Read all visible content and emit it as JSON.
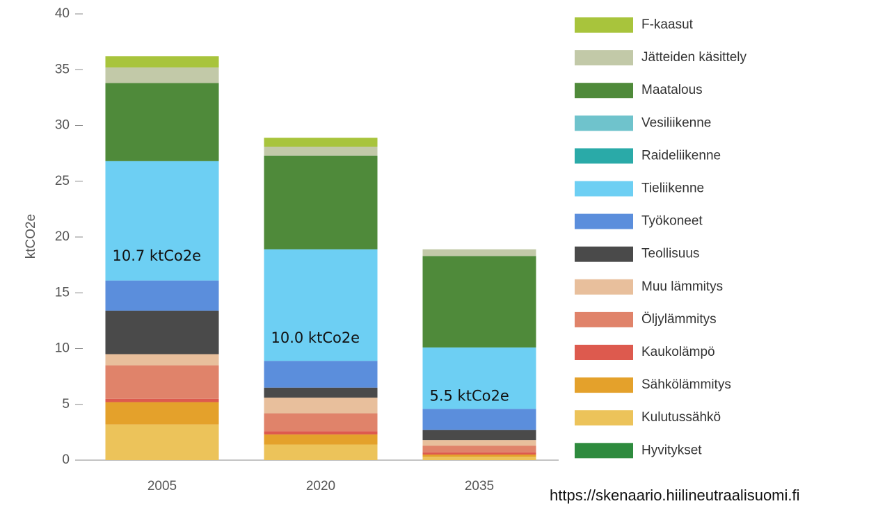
{
  "chart_data": {
    "type": "stacked_bar",
    "ylabel": "ktCO2e",
    "categories": [
      "2005",
      "2020",
      "2035"
    ],
    "ylim": [
      0,
      40
    ],
    "yticks": [
      0,
      5,
      10,
      15,
      20,
      25,
      30,
      35,
      40
    ],
    "grid": false,
    "legend": "right",
    "series": [
      {
        "name": "F-kaasut",
        "color": "#a8c43c",
        "values": [
          1.0,
          0.8,
          0
        ]
      },
      {
        "name": "Jätteiden käsittely",
        "color": "#c2c9a8",
        "values": [
          1.4,
          0.8,
          0.6
        ]
      },
      {
        "name": "Maatalous",
        "color": "#4f8a3a",
        "values": [
          7.0,
          8.4,
          8.2
        ]
      },
      {
        "name": "Vesiliikenne",
        "color": "#6fc3cc",
        "values": [
          0,
          0,
          0
        ]
      },
      {
        "name": "Raideliikenne",
        "color": "#2aaaa8",
        "values": [
          0,
          0,
          0
        ]
      },
      {
        "name": "Tieliikenne",
        "color": "#6dcff3",
        "values": [
          10.7,
          10.0,
          5.5
        ]
      },
      {
        "name": "Työkoneet",
        "color": "#5b8edc",
        "values": [
          2.7,
          2.4,
          1.9
        ]
      },
      {
        "name": "Teollisuus",
        "color": "#4a4a4a",
        "values": [
          3.9,
          0.9,
          0.9
        ]
      },
      {
        "name": "Muu lämmitys",
        "color": "#e8bf9c",
        "values": [
          1.0,
          1.4,
          0.5
        ]
      },
      {
        "name": "Öljylämmitys",
        "color": "#e0836a",
        "values": [
          3.0,
          1.6,
          0.6
        ]
      },
      {
        "name": "Kaukolämpö",
        "color": "#dd5a4e",
        "values": [
          0.3,
          0.3,
          0.2
        ]
      },
      {
        "name": "Sähkölämmitys",
        "color": "#e4a12b",
        "values": [
          2.0,
          0.9,
          0.2
        ]
      },
      {
        "name": "Kulutussähkö",
        "color": "#ecc35a",
        "values": [
          3.2,
          1.4,
          0.3
        ]
      },
      {
        "name": "Hyvitykset",
        "color": "#2e8b3e",
        "values": [
          0,
          0,
          0
        ]
      }
    ],
    "annotations": [
      "10.7 ktCo2e",
      "10.0 ktCo2e",
      "5.5 ktCo2e"
    ],
    "source": "https://skenaario.hiilineutraalisuomi.fi"
  }
}
